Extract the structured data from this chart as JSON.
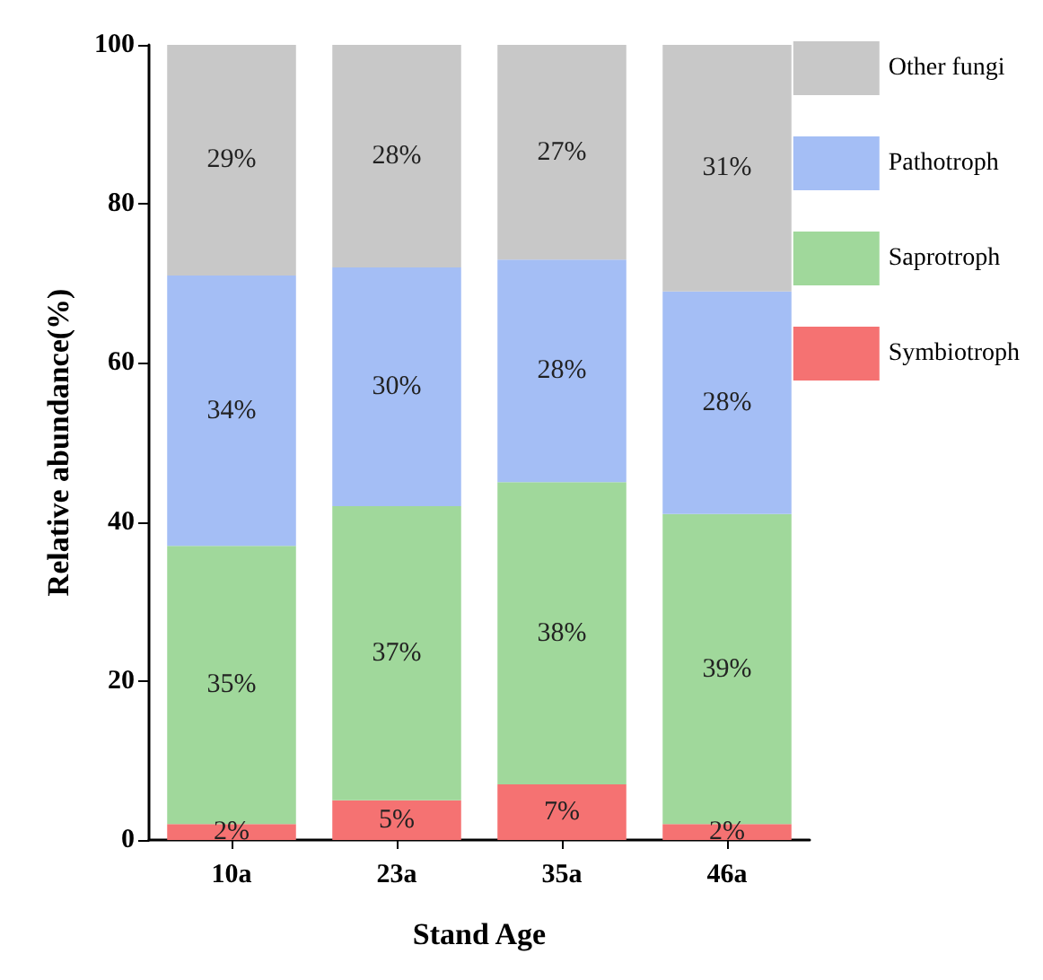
{
  "chart_data": {
    "type": "bar",
    "stacked": true,
    "xlabel": "Stand Age",
    "ylabel": "Relative abundance(%)",
    "categories": [
      "10a",
      "23a",
      "35a",
      "46a"
    ],
    "series": [
      {
        "name": "Symbiotroph",
        "color": "#f57272",
        "values": [
          2,
          5,
          7,
          2
        ],
        "value_labels": [
          "2%",
          "5%",
          "7%",
          "2%"
        ]
      },
      {
        "name": "Saprotroph",
        "color": "#a0d89b",
        "values": [
          35,
          37,
          38,
          39
        ],
        "value_labels": [
          "35%",
          "37%",
          "38%",
          "39%"
        ]
      },
      {
        "name": "Pathotroph",
        "color": "#a4bef5",
        "values": [
          34,
          30,
          28,
          28
        ],
        "value_labels": [
          "34%",
          "30%",
          "28%",
          "28%"
        ]
      },
      {
        "name": "Other fungi",
        "color": "#c8c8c8",
        "values": [
          29,
          28,
          27,
          31
        ],
        "value_labels": [
          "29%",
          "28%",
          "27%",
          "31%"
        ]
      }
    ],
    "ylim": [
      0,
      100
    ],
    "yticks": [
      0,
      20,
      40,
      60,
      80,
      100
    ],
    "grid": false,
    "legend": "top right"
  }
}
